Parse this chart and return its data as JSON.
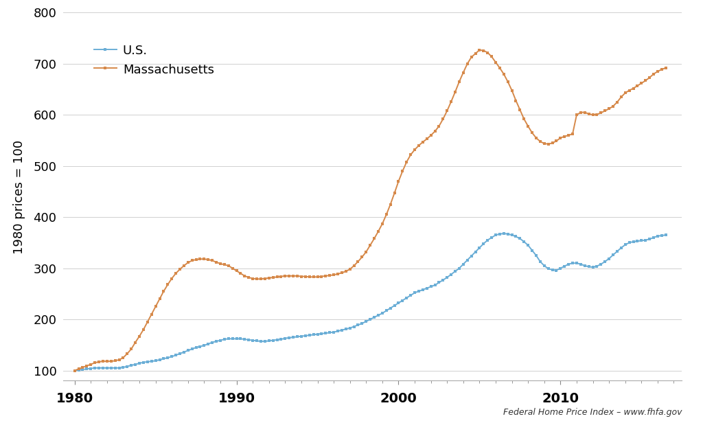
{
  "ylabel": "1980 prices = 100",
  "xlabel": "",
  "footnote": "Federal Home Price Index – www.fhfa.gov",
  "ylim": [
    80,
    800
  ],
  "yticks": [
    100,
    200,
    300,
    400,
    500,
    600,
    700,
    800
  ],
  "xticks": [
    1980,
    1990,
    2000,
    2010
  ],
  "background_color": "#ffffff",
  "us_color": "#6baed6",
  "ma_color": "#d6894a",
  "us_label": "U.S.",
  "ma_label": "Massachusetts",
  "us_data": {
    "years": [
      1980.0,
      1980.25,
      1980.5,
      1980.75,
      1981.0,
      1981.25,
      1981.5,
      1981.75,
      1982.0,
      1982.25,
      1982.5,
      1982.75,
      1983.0,
      1983.25,
      1983.5,
      1983.75,
      1984.0,
      1984.25,
      1984.5,
      1984.75,
      1985.0,
      1985.25,
      1985.5,
      1985.75,
      1986.0,
      1986.25,
      1986.5,
      1986.75,
      1987.0,
      1987.25,
      1987.5,
      1987.75,
      1988.0,
      1988.25,
      1988.5,
      1988.75,
      1989.0,
      1989.25,
      1989.5,
      1989.75,
      1990.0,
      1990.25,
      1990.5,
      1990.75,
      1991.0,
      1991.25,
      1991.5,
      1991.75,
      1992.0,
      1992.25,
      1992.5,
      1992.75,
      1993.0,
      1993.25,
      1993.5,
      1993.75,
      1994.0,
      1994.25,
      1994.5,
      1994.75,
      1995.0,
      1995.25,
      1995.5,
      1995.75,
      1996.0,
      1996.25,
      1996.5,
      1996.75,
      1997.0,
      1997.25,
      1997.5,
      1997.75,
      1998.0,
      1998.25,
      1998.5,
      1998.75,
      1999.0,
      1999.25,
      1999.5,
      1999.75,
      2000.0,
      2000.25,
      2000.5,
      2000.75,
      2001.0,
      2001.25,
      2001.5,
      2001.75,
      2002.0,
      2002.25,
      2002.5,
      2002.75,
      2003.0,
      2003.25,
      2003.5,
      2003.75,
      2004.0,
      2004.25,
      2004.5,
      2004.75,
      2005.0,
      2005.25,
      2005.5,
      2005.75,
      2006.0,
      2006.25,
      2006.5,
      2006.75,
      2007.0,
      2007.25,
      2007.5,
      2007.75,
      2008.0,
      2008.25,
      2008.5,
      2008.75,
      2009.0,
      2009.25,
      2009.5,
      2009.75,
      2010.0,
      2010.25,
      2010.5,
      2010.75,
      2011.0,
      2011.25,
      2011.5,
      2011.75,
      2012.0,
      2012.25,
      2012.5,
      2012.75,
      2013.0,
      2013.25,
      2013.5,
      2013.75,
      2014.0,
      2014.25,
      2014.5,
      2014.75,
      2015.0,
      2015.25,
      2015.5,
      2015.75,
      2016.0,
      2016.25,
      2016.5
    ],
    "values": [
      100,
      101,
      102,
      103,
      104,
      105,
      105,
      105,
      105,
      105,
      105,
      105,
      106,
      108,
      110,
      112,
      114,
      116,
      117,
      118,
      119,
      121,
      123,
      125,
      127,
      130,
      133,
      136,
      139,
      142,
      145,
      147,
      149,
      152,
      155,
      157,
      159,
      161,
      162,
      162,
      162,
      162,
      161,
      160,
      159,
      158,
      157,
      157,
      158,
      159,
      160,
      161,
      163,
      164,
      165,
      166,
      167,
      168,
      169,
      170,
      171,
      172,
      173,
      174,
      175,
      177,
      179,
      181,
      183,
      186,
      189,
      192,
      196,
      200,
      204,
      208,
      212,
      217,
      222,
      227,
      232,
      237,
      242,
      247,
      252,
      255,
      258,
      261,
      264,
      267,
      272,
      277,
      282,
      288,
      294,
      300,
      308,
      316,
      324,
      332,
      340,
      348,
      355,
      360,
      365,
      367,
      368,
      367,
      365,
      362,
      358,
      352,
      345,
      335,
      325,
      313,
      305,
      299,
      297,
      296,
      300,
      304,
      308,
      310,
      310,
      308,
      305,
      303,
      302,
      304,
      308,
      313,
      319,
      326,
      333,
      340,
      346,
      350,
      352,
      353,
      354,
      355,
      357,
      360,
      363,
      364,
      365
    ]
  },
  "ma_data": {
    "years": [
      1980.0,
      1980.25,
      1980.5,
      1980.75,
      1981.0,
      1981.25,
      1981.5,
      1981.75,
      1982.0,
      1982.25,
      1982.5,
      1982.75,
      1983.0,
      1983.25,
      1983.5,
      1983.75,
      1984.0,
      1984.25,
      1984.5,
      1984.75,
      1985.0,
      1985.25,
      1985.5,
      1985.75,
      1986.0,
      1986.25,
      1986.5,
      1986.75,
      1987.0,
      1987.25,
      1987.5,
      1987.75,
      1988.0,
      1988.25,
      1988.5,
      1988.75,
      1989.0,
      1989.25,
      1989.5,
      1989.75,
      1990.0,
      1990.25,
      1990.5,
      1990.75,
      1991.0,
      1991.25,
      1991.5,
      1991.75,
      1992.0,
      1992.25,
      1992.5,
      1992.75,
      1993.0,
      1993.25,
      1993.5,
      1993.75,
      1994.0,
      1994.25,
      1994.5,
      1994.75,
      1995.0,
      1995.25,
      1995.5,
      1995.75,
      1996.0,
      1996.25,
      1996.5,
      1996.75,
      1997.0,
      1997.25,
      1997.5,
      1997.75,
      1998.0,
      1998.25,
      1998.5,
      1998.75,
      1999.0,
      1999.25,
      1999.5,
      1999.75,
      2000.0,
      2000.25,
      2000.5,
      2000.75,
      2001.0,
      2001.25,
      2001.5,
      2001.75,
      2002.0,
      2002.25,
      2002.5,
      2002.75,
      2003.0,
      2003.25,
      2003.5,
      2003.75,
      2004.0,
      2004.25,
      2004.5,
      2004.75,
      2005.0,
      2005.25,
      2005.5,
      2005.75,
      2006.0,
      2006.25,
      2006.5,
      2006.75,
      2007.0,
      2007.25,
      2007.5,
      2007.75,
      2008.0,
      2008.25,
      2008.5,
      2008.75,
      2009.0,
      2009.25,
      2009.5,
      2009.75,
      2010.0,
      2010.25,
      2010.5,
      2010.75,
      2011.0,
      2011.25,
      2011.5,
      2011.75,
      2012.0,
      2012.25,
      2012.5,
      2012.75,
      2013.0,
      2013.25,
      2013.5,
      2013.75,
      2014.0,
      2014.25,
      2014.5,
      2014.75,
      2015.0,
      2015.25,
      2015.5,
      2015.75,
      2016.0,
      2016.25,
      2016.5
    ],
    "values": [
      100,
      103,
      106,
      109,
      112,
      115,
      117,
      118,
      118,
      118,
      119,
      121,
      125,
      133,
      142,
      155,
      167,
      180,
      195,
      210,
      225,
      240,
      255,
      268,
      280,
      290,
      298,
      305,
      311,
      315,
      317,
      318,
      318,
      317,
      315,
      312,
      309,
      307,
      305,
      300,
      295,
      290,
      285,
      282,
      280,
      279,
      279,
      280,
      281,
      282,
      283,
      284,
      285,
      285,
      285,
      285,
      284,
      284,
      283,
      283,
      283,
      284,
      285,
      286,
      287,
      289,
      291,
      294,
      298,
      305,
      313,
      322,
      332,
      345,
      358,
      372,
      387,
      405,
      425,
      447,
      470,
      490,
      508,
      522,
      532,
      540,
      547,
      553,
      560,
      568,
      578,
      592,
      608,
      626,
      645,
      665,
      683,
      700,
      713,
      720,
      727,
      726,
      722,
      714,
      703,
      692,
      680,
      665,
      648,
      628,
      610,
      592,
      578,
      565,
      555,
      548,
      544,
      543,
      545,
      549,
      555,
      558,
      560,
      563,
      600,
      605,
      605,
      602,
      600,
      601,
      604,
      608,
      612,
      617,
      625,
      635,
      643,
      648,
      652,
      657,
      662,
      667,
      673,
      680,
      685,
      689,
      692
    ]
  }
}
